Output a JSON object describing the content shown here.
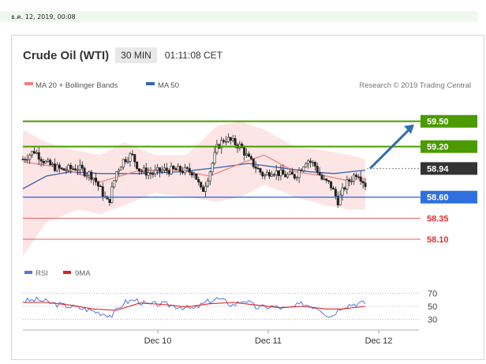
{
  "date_text": "ธ.ค. 12, 2019, 00:08",
  "header": {
    "title": "Crude Oil (WTI)",
    "timeframe": "30 MIN",
    "clock": "01:11:08 CET"
  },
  "legend": {
    "ma20_label": "MA 20 + Bollinger Bands",
    "ma50_label": "MA 50",
    "credit": "Research © 2019 Trading Central"
  },
  "colors": {
    "ma20": "#f08080",
    "ma50": "#3a66b0",
    "bands": "#fde0e0",
    "resistance": "#4a9a00",
    "support": "#2f6fe0",
    "support_minor": "#e06060",
    "rsi": "#5577dd",
    "rsi_ma": "#dd2222",
    "arrow": "#2f6fb0",
    "price_box": "#333333"
  },
  "chart_data": {
    "type": "candlestick",
    "ylim": [
      57.8,
      59.75
    ],
    "levels": [
      {
        "value": 59.5,
        "label": "59.50",
        "kind": "resistance"
      },
      {
        "value": 59.2,
        "label": "59.20",
        "kind": "resistance"
      },
      {
        "value": 58.94,
        "label": "58.94",
        "kind": "price"
      },
      {
        "value": 58.6,
        "label": "58.60",
        "kind": "support"
      },
      {
        "value": 58.35,
        "label": "58.35",
        "kind": "support_minor"
      },
      {
        "value": 58.1,
        "label": "58.10",
        "kind": "support_minor"
      }
    ],
    "x_labels": [
      "Dec 10",
      "Dec 11",
      "Dec 12"
    ],
    "forecast_target": 59.5,
    "close_path": [
      [
        0,
        59.05
      ],
      [
        3,
        59.15
      ],
      [
        6,
        59.0
      ],
      [
        10,
        58.92
      ],
      [
        14,
        58.95
      ],
      [
        18,
        58.85
      ],
      [
        20,
        58.68
      ],
      [
        22,
        58.52
      ],
      [
        24,
        58.9
      ],
      [
        26,
        59.05
      ],
      [
        28,
        59.1
      ],
      [
        30,
        58.92
      ],
      [
        33,
        58.88
      ],
      [
        36,
        58.92
      ],
      [
        40,
        58.92
      ],
      [
        44,
        58.9
      ],
      [
        46,
        58.65
      ],
      [
        48,
        58.9
      ],
      [
        50,
        59.2
      ],
      [
        52,
        59.3
      ],
      [
        54,
        59.25
      ],
      [
        56,
        59.2
      ],
      [
        58,
        59.05
      ],
      [
        60,
        58.95
      ],
      [
        62,
        58.85
      ],
      [
        64,
        58.92
      ],
      [
        67,
        58.86
      ],
      [
        70,
        58.85
      ],
      [
        73,
        59.05
      ],
      [
        75,
        58.98
      ],
      [
        77,
        58.8
      ],
      [
        79,
        58.75
      ],
      [
        81,
        58.55
      ],
      [
        83,
        58.75
      ],
      [
        85,
        58.85
      ],
      [
        86,
        58.9
      ],
      [
        88,
        58.75
      ]
    ],
    "ma20_path": [
      [
        0,
        59.02
      ],
      [
        10,
        58.95
      ],
      [
        20,
        58.78
      ],
      [
        30,
        58.92
      ],
      [
        40,
        58.92
      ],
      [
        48,
        58.85
      ],
      [
        56,
        59.0
      ],
      [
        62,
        59.1
      ],
      [
        70,
        58.9
      ],
      [
        78,
        58.85
      ],
      [
        83,
        58.8
      ],
      [
        88,
        58.82
      ]
    ],
    "ma50_path": [
      [
        0,
        58.7
      ],
      [
        6,
        58.85
      ],
      [
        12,
        58.9
      ],
      [
        20,
        58.88
      ],
      [
        30,
        58.88
      ],
      [
        40,
        58.9
      ],
      [
        50,
        58.95
      ],
      [
        58,
        59.0
      ],
      [
        66,
        58.95
      ],
      [
        74,
        58.9
      ],
      [
        80,
        58.88
      ],
      [
        88,
        58.92
      ]
    ],
    "band_upper": [
      [
        0,
        59.4
      ],
      [
        6,
        59.25
      ],
      [
        14,
        59.15
      ],
      [
        20,
        59.1
      ],
      [
        26,
        59.25
      ],
      [
        34,
        59.1
      ],
      [
        42,
        59.1
      ],
      [
        50,
        59.45
      ],
      [
        56,
        59.5
      ],
      [
        62,
        59.4
      ],
      [
        70,
        59.2
      ],
      [
        78,
        59.15
      ],
      [
        84,
        59.1
      ],
      [
        88,
        59.05
      ]
    ],
    "band_lower": [
      [
        0,
        57.9
      ],
      [
        6,
        58.3
      ],
      [
        14,
        58.45
      ],
      [
        20,
        58.4
      ],
      [
        26,
        58.5
      ],
      [
        34,
        58.65
      ],
      [
        42,
        58.6
      ],
      [
        50,
        58.55
      ],
      [
        56,
        58.6
      ],
      [
        62,
        58.75
      ],
      [
        70,
        58.6
      ],
      [
        78,
        58.5
      ],
      [
        84,
        58.45
      ],
      [
        88,
        58.45
      ]
    ],
    "rsi": {
      "ylim": [
        20,
        80
      ],
      "levels": [
        70,
        50,
        30
      ],
      "legend": [
        "RSI",
        "9MA"
      ],
      "rsi_path": [
        [
          0,
          58
        ],
        [
          4,
          60
        ],
        [
          8,
          54
        ],
        [
          12,
          50
        ],
        [
          16,
          46
        ],
        [
          20,
          40
        ],
        [
          23,
          36
        ],
        [
          26,
          56
        ],
        [
          29,
          60
        ],
        [
          32,
          52
        ],
        [
          35,
          54
        ],
        [
          40,
          50
        ],
        [
          44,
          46
        ],
        [
          47,
          56
        ],
        [
          50,
          62
        ],
        [
          54,
          52
        ],
        [
          57,
          60
        ],
        [
          60,
          48
        ],
        [
          64,
          50
        ],
        [
          68,
          46
        ],
        [
          72,
          54
        ],
        [
          76,
          48
        ],
        [
          79,
          34
        ],
        [
          82,
          50
        ],
        [
          85,
          54
        ],
        [
          88,
          55
        ]
      ],
      "ma_path": [
        [
          0,
          56
        ],
        [
          6,
          56
        ],
        [
          12,
          52
        ],
        [
          18,
          46
        ],
        [
          24,
          44
        ],
        [
          30,
          55
        ],
        [
          36,
          53
        ],
        [
          42,
          49
        ],
        [
          48,
          54
        ],
        [
          54,
          56
        ],
        [
          60,
          52
        ],
        [
          66,
          48
        ],
        [
          72,
          50
        ],
        [
          78,
          46
        ],
        [
          82,
          46
        ],
        [
          88,
          50
        ]
      ]
    }
  }
}
